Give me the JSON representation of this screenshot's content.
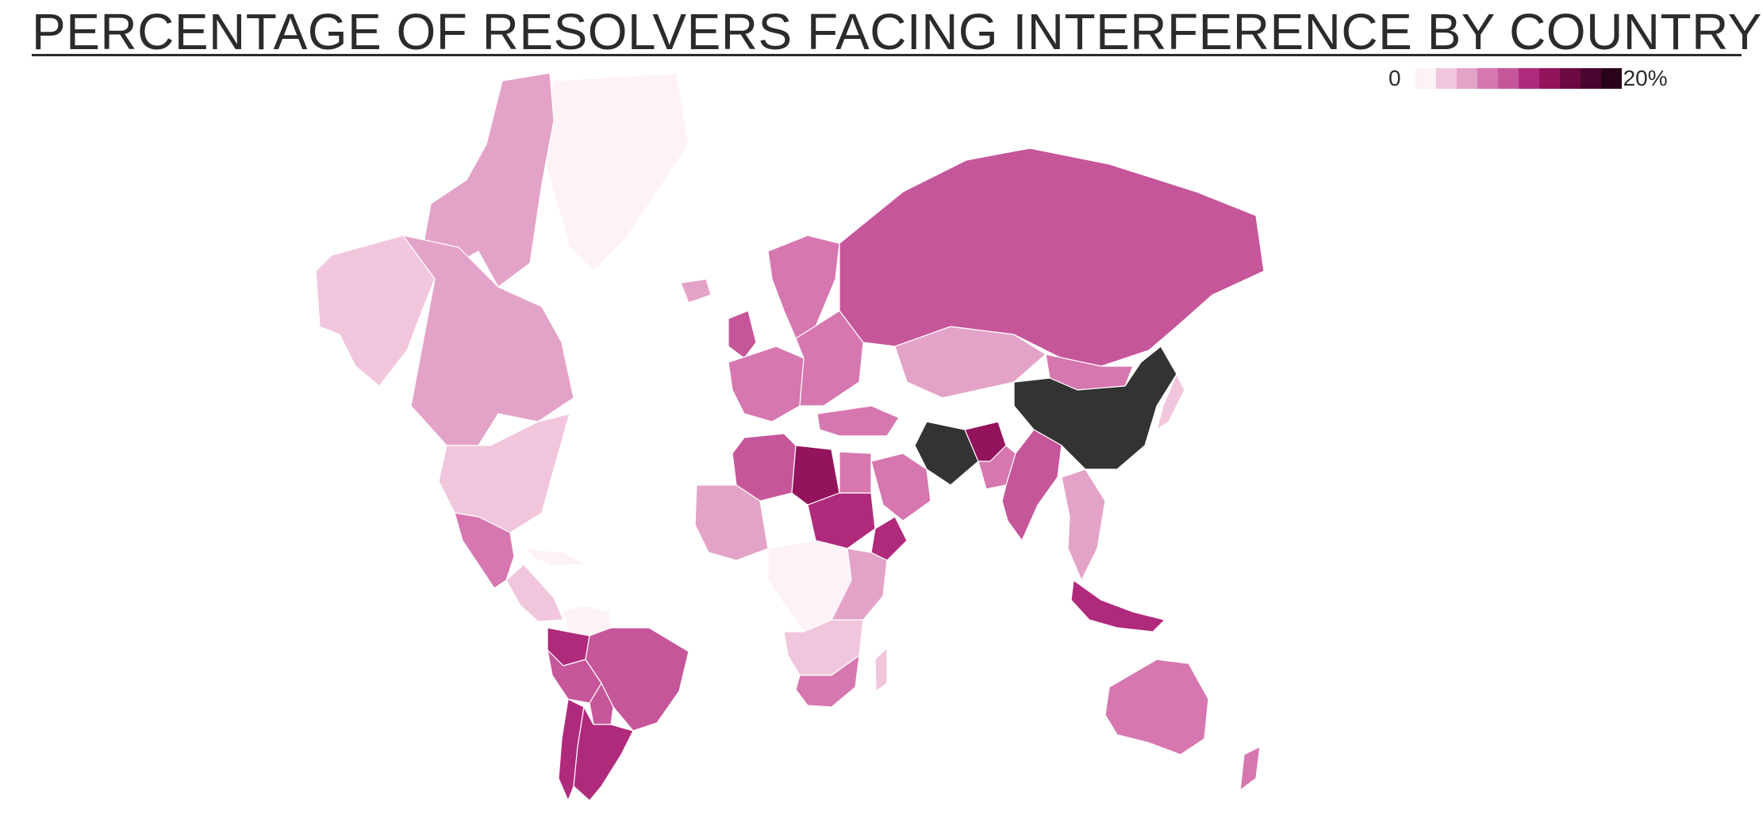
{
  "title": "PERCENTAGE OF RESOLVERS FACING INTERFERENCE BY COUNTRY",
  "legend": {
    "min_label": "0",
    "max_label": "20%",
    "colors": [
      "#fdf2f6",
      "#f1c6dc",
      "#e3a3c8",
      "#d677b0",
      "#c6569a",
      "#b02a7c",
      "#94135d",
      "#6d0a44",
      "#4a062e",
      "#2a0318"
    ]
  },
  "colors": {
    "no_data": "#fdf4f8",
    "highest": "#333333",
    "background": "#ffffff"
  },
  "regions": [
    {
      "name": "Greenland",
      "level": 0
    },
    {
      "name": "Alaska",
      "level": 1
    },
    {
      "name": "Canadian Arctic",
      "level": 2
    },
    {
      "name": "Canada",
      "level": 2
    },
    {
      "name": "United States",
      "level": 1
    },
    {
      "name": "Mexico",
      "level": 3
    },
    {
      "name": "Central America",
      "level": 1
    },
    {
      "name": "Cuba",
      "level": 0
    },
    {
      "name": "Colombia",
      "level": 5
    },
    {
      "name": "Venezuela",
      "level": 0
    },
    {
      "name": "Brazil",
      "level": 4
    },
    {
      "name": "Peru",
      "level": 4
    },
    {
      "name": "Bolivia",
      "level": 4
    },
    {
      "name": "Argentina",
      "level": 5
    },
    {
      "name": "Chile",
      "level": 5
    },
    {
      "name": "Iceland",
      "level": 2
    },
    {
      "name": "Scandinavia",
      "level": 3
    },
    {
      "name": "United Kingdom",
      "level": 4
    },
    {
      "name": "Western Europe",
      "level": 3
    },
    {
      "name": "Eastern Europe",
      "level": 3
    },
    {
      "name": "Russia",
      "level": 4
    },
    {
      "name": "Kazakhstan",
      "level": 2
    },
    {
      "name": "Mongolia",
      "level": 3
    },
    {
      "name": "China",
      "level": 10
    },
    {
      "name": "Iran",
      "level": 10
    },
    {
      "name": "Afghanistan",
      "level": 6
    },
    {
      "name": "Pakistan",
      "level": 3
    },
    {
      "name": "India",
      "level": 4
    },
    {
      "name": "Southeast Asia",
      "level": 2
    },
    {
      "name": "Indonesia",
      "level": 5
    },
    {
      "name": "Japan",
      "level": 1
    },
    {
      "name": "Australia",
      "level": 3
    },
    {
      "name": "New Zealand",
      "level": 3
    },
    {
      "name": "Algeria",
      "level": 4
    },
    {
      "name": "Libya",
      "level": 6
    },
    {
      "name": "Egypt",
      "level": 3
    },
    {
      "name": "Sudan",
      "level": 5
    },
    {
      "name": "Ethiopia",
      "level": 5
    },
    {
      "name": "West Africa",
      "level": 2
    },
    {
      "name": "Central Africa",
      "level": 0
    },
    {
      "name": "East Africa",
      "level": 2
    },
    {
      "name": "Southern Africa",
      "level": 1
    },
    {
      "name": "South Africa",
      "level": 3
    },
    {
      "name": "Saudi Arabia",
      "level": 3
    },
    {
      "name": "Turkey",
      "level": 3
    },
    {
      "name": "Madagascar",
      "level": 1
    }
  ]
}
